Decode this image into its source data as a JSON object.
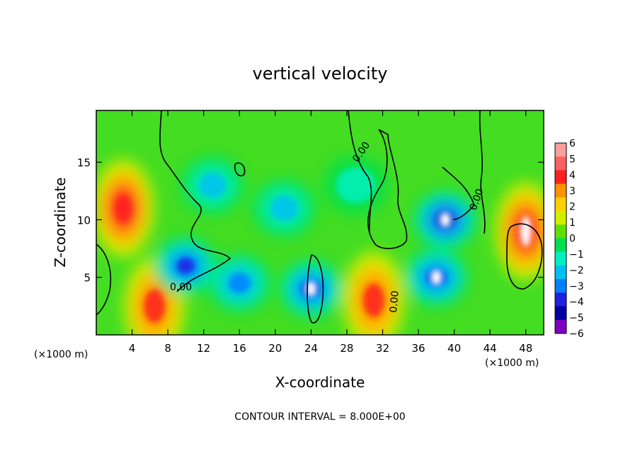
{
  "chart_data": {
    "type": "heatmap",
    "title": "vertical velocity",
    "xlabel": "X-coordinate",
    "ylabel": "Z-coordinate",
    "x_unit_left": "(×1000 m)",
    "x_unit_right": "(×1000 m)",
    "xlim": [
      0,
      50
    ],
    "ylim": [
      0,
      19.5
    ],
    "x_ticks": [
      4,
      8,
      12,
      16,
      20,
      24,
      28,
      32,
      36,
      40,
      44,
      48
    ],
    "y_ticks": [
      5,
      10,
      15
    ],
    "footer": "CONTOUR INTERVAL = 8.000E+00",
    "contour_labels": [
      "0.00",
      "0.00",
      "0.00",
      "0.00"
    ],
    "colorbar": {
      "levels": [
        6,
        5,
        4,
        3,
        2,
        1,
        0,
        -1,
        -2,
        -3,
        -4,
        -5,
        -6
      ],
      "colors": [
        "#f8a0a0",
        "#ff6060",
        "#ff2020",
        "#ff9000",
        "#ffd000",
        "#d0f000",
        "#60e000",
        "#00e050",
        "#00f0c0",
        "#00c0f0",
        "#0080ff",
        "#2020e0",
        "#0000a0",
        "#8000c0"
      ]
    },
    "features": [
      {
        "kind": "updraft",
        "x": 3,
        "z": 11,
        "value": 4.5
      },
      {
        "kind": "updraft",
        "x": 48,
        "z": 9,
        "value": 5
      },
      {
        "kind": "updraft",
        "x": 31,
        "z": 3,
        "value": 4
      },
      {
        "kind": "updraft",
        "x": 6.5,
        "z": 2.5,
        "value": 4
      },
      {
        "kind": "downdraft",
        "x": 39,
        "z": 10,
        "value": -5.5
      },
      {
        "kind": "downdraft",
        "x": 38,
        "z": 5,
        "value": -5
      },
      {
        "kind": "downdraft",
        "x": 24,
        "z": 4,
        "value": -5
      },
      {
        "kind": "downdraft",
        "x": 16,
        "z": 4.5,
        "value": -4
      },
      {
        "kind": "downdraft",
        "x": 10,
        "z": 6,
        "value": -4.5
      },
      {
        "kind": "downdraft",
        "x": 13,
        "z": 13,
        "value": -3
      },
      {
        "kind": "downdraft",
        "x": 21,
        "z": 11,
        "value": -3
      },
      {
        "kind": "downdraft",
        "x": 29,
        "z": 13,
        "value": -2
      }
    ]
  }
}
